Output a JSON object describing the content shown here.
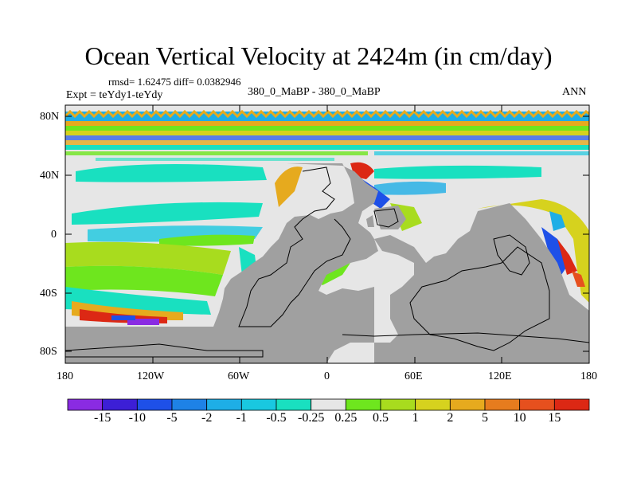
{
  "title": "Ocean Vertical Velocity at 2424m (in cm/day)",
  "stats": "rmsd= 1.62475 diff= 0.0382946",
  "expt": "Expt = teYdy1-teYdy",
  "case_label": "380_0_MaBP - 380_0_MaBP",
  "season": "ANN",
  "lat_ticks": [
    "80N",
    "40N",
    "0",
    "40S",
    "80S"
  ],
  "lon_ticks": [
    "180",
    "120W",
    "60W",
    "0",
    "60E",
    "120E",
    "180"
  ],
  "colorbar": {
    "labels": [
      "-15",
      "-10",
      "-5",
      "-2",
      "-1",
      "-0.5",
      "-0.25",
      "0.25",
      "0.5",
      "1",
      "2",
      "5",
      "10",
      "15"
    ],
    "colors": [
      "#8a2be2",
      "#3c1fd6",
      "#1e50e8",
      "#1e82e6",
      "#1eaee6",
      "#19c8e0",
      "#19e0c0",
      "#e6e6e6",
      "#6ee61e",
      "#a8dc1e",
      "#d6d21e",
      "#e6aa1e",
      "#e67c1e",
      "#e6501e",
      "#dc2814"
    ]
  },
  "colors": {
    "land": "#a0a0a0",
    "zero_band": "#e6e6e6"
  }
}
